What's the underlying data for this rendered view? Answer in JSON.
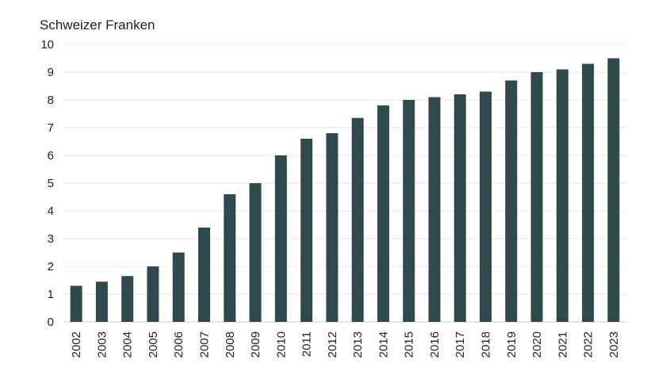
{
  "chart_data": {
    "type": "bar",
    "title": "",
    "xlabel": "",
    "ylabel": "Schweizer Franken",
    "ylim": [
      0,
      10
    ],
    "yticks": [
      0,
      1,
      2,
      3,
      4,
      5,
      6,
      7,
      8,
      9,
      10
    ],
    "grid": true,
    "categories": [
      "2002",
      "2003",
      "2004",
      "2005",
      "2006",
      "2007",
      "2008",
      "2009",
      "2010",
      "2011",
      "2012",
      "2013",
      "2014",
      "2015",
      "2016",
      "2017",
      "2018",
      "2019",
      "2020",
      "2021",
      "2022",
      "2023"
    ],
    "values": [
      1.3,
      1.45,
      1.65,
      2.0,
      2.5,
      3.4,
      4.6,
      5.0,
      6.0,
      6.6,
      6.8,
      7.35,
      7.8,
      8.0,
      8.1,
      8.2,
      8.3,
      8.7,
      9.0,
      9.1,
      9.3,
      9.5
    ],
    "bar_color": "#2e4a4d"
  }
}
